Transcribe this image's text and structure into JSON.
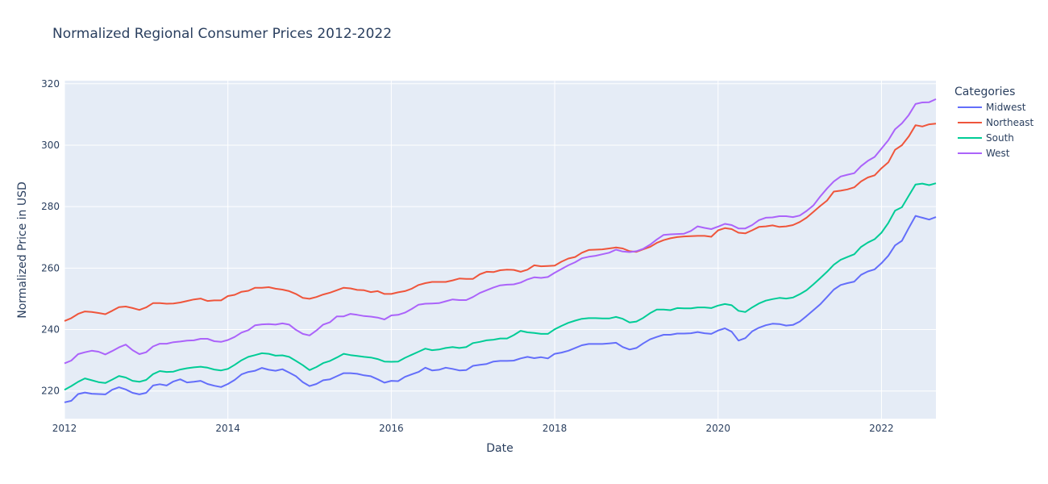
{
  "chart_data": {
    "type": "line",
    "title": "Normalized Regional Consumer Prices 2012-2022",
    "xlabel": "Date",
    "ylabel": "Normalized Price in USD",
    "xlim": [
      "2012-01",
      "2022-09"
    ],
    "ylim": [
      211,
      321
    ],
    "x_ticks": [
      "2012",
      "2014",
      "2016",
      "2018",
      "2020",
      "2022"
    ],
    "y_ticks": [
      220,
      240,
      260,
      280,
      300,
      320
    ],
    "grid": true,
    "legend": {
      "title": "Categories",
      "placement": "right"
    },
    "plot_bgcolor": "#e5ecf6",
    "x": [
      "2012-01",
      "2012-02",
      "2012-03",
      "2012-04",
      "2012-05",
      "2012-06",
      "2012-07",
      "2012-08",
      "2012-09",
      "2012-10",
      "2012-11",
      "2012-12",
      "2013-01",
      "2013-02",
      "2013-03",
      "2013-04",
      "2013-05",
      "2013-06",
      "2013-07",
      "2013-08",
      "2013-09",
      "2013-10",
      "2013-11",
      "2013-12",
      "2014-01",
      "2014-02",
      "2014-03",
      "2014-04",
      "2014-05",
      "2014-06",
      "2014-07",
      "2014-08",
      "2014-09",
      "2014-10",
      "2014-11",
      "2014-12",
      "2015-01",
      "2015-02",
      "2015-03",
      "2015-04",
      "2015-05",
      "2015-06",
      "2015-07",
      "2015-08",
      "2015-09",
      "2015-10",
      "2015-11",
      "2015-12",
      "2016-01",
      "2016-02",
      "2016-03",
      "2016-04",
      "2016-05",
      "2016-06",
      "2016-07",
      "2016-08",
      "2016-09",
      "2016-10",
      "2016-11",
      "2016-12",
      "2017-01",
      "2017-02",
      "2017-03",
      "2017-04",
      "2017-05",
      "2017-06",
      "2017-07",
      "2017-08",
      "2017-09",
      "2017-10",
      "2017-11",
      "2017-12",
      "2018-01",
      "2018-02",
      "2018-03",
      "2018-04",
      "2018-05",
      "2018-06",
      "2018-07",
      "2018-08",
      "2018-09",
      "2018-10",
      "2018-11",
      "2018-12",
      "2019-01",
      "2019-02",
      "2019-03",
      "2019-04",
      "2019-05",
      "2019-06",
      "2019-07",
      "2019-08",
      "2019-09",
      "2019-10",
      "2019-11",
      "2019-12",
      "2020-01",
      "2020-02",
      "2020-03",
      "2020-04",
      "2020-05",
      "2020-06",
      "2020-07",
      "2020-08",
      "2020-09",
      "2020-10",
      "2020-11",
      "2020-12",
      "2021-01",
      "2021-02",
      "2021-03",
      "2021-04",
      "2021-05",
      "2021-06",
      "2021-07",
      "2021-08",
      "2021-09",
      "2021-10",
      "2021-11",
      "2021-12",
      "2022-01",
      "2022-02",
      "2022-03",
      "2022-04",
      "2022-05",
      "2022-06",
      "2022-07",
      "2022-08",
      "2022-09"
    ],
    "series": [
      {
        "name": "Midwest",
        "color": "#636efa",
        "values": [
          216.3,
          216.8,
          219.0,
          219.5,
          219.1,
          219.0,
          218.9,
          220.4,
          221.2,
          220.5,
          219.4,
          218.9,
          219.4,
          221.8,
          222.2,
          221.8,
          223.1,
          223.8,
          222.8,
          223.0,
          223.3,
          222.3,
          221.7,
          221.3,
          222.3,
          223.6,
          225.4,
          226.2,
          226.6,
          227.5,
          226.9,
          226.6,
          227.1,
          226.0,
          224.8,
          222.9,
          221.6,
          222.3,
          223.5,
          223.8,
          224.8,
          225.8,
          225.8,
          225.6,
          225.1,
          224.8,
          223.8,
          222.7,
          223.3,
          223.2,
          224.6,
          225.4,
          226.2,
          227.6,
          226.7,
          226.9,
          227.6,
          227.2,
          226.7,
          226.8,
          228.2,
          228.5,
          228.8,
          229.6,
          229.8,
          229.8,
          229.9,
          230.6,
          231.1,
          230.7,
          231.0,
          230.6,
          232.1,
          232.5,
          233.1,
          234.0,
          234.9,
          235.3,
          235.3,
          235.3,
          235.5,
          235.7,
          234.3,
          233.5,
          234.0,
          235.5,
          236.8,
          237.6,
          238.3,
          238.3,
          238.7,
          238.7,
          238.8,
          239.2,
          238.8,
          238.6,
          239.7,
          240.4,
          239.3,
          236.4,
          237.2,
          239.4,
          240.6,
          241.4,
          241.9,
          241.8,
          241.3,
          241.5,
          242.6,
          244.4,
          246.3,
          248.2,
          250.6,
          253.0,
          254.5,
          255.1,
          255.6,
          257.8,
          258.9,
          259.6,
          261.6,
          264.0,
          267.4,
          268.9,
          273.0,
          277.0,
          276.4,
          275.8,
          276.6
        ]
      },
      {
        "name": "Northeast",
        "color": "#ef553b",
        "values": [
          242.8,
          243.7,
          245.1,
          245.9,
          245.7,
          245.4,
          245.0,
          246.1,
          247.3,
          247.5,
          247.0,
          246.4,
          247.2,
          248.6,
          248.6,
          248.4,
          248.5,
          248.8,
          249.3,
          249.8,
          250.1,
          249.3,
          249.5,
          249.5,
          250.9,
          251.3,
          252.3,
          252.6,
          253.6,
          253.6,
          253.8,
          253.3,
          253.0,
          252.5,
          251.6,
          250.3,
          250.0,
          250.6,
          251.4,
          252.0,
          252.8,
          253.6,
          253.4,
          252.9,
          252.8,
          252.2,
          252.5,
          251.6,
          251.6,
          252.1,
          252.5,
          253.3,
          254.5,
          255.1,
          255.5,
          255.5,
          255.5,
          256.0,
          256.6,
          256.5,
          256.5,
          258.0,
          258.8,
          258.7,
          259.3,
          259.5,
          259.4,
          258.8,
          259.5,
          260.9,
          260.6,
          260.7,
          260.8,
          262.1,
          263.1,
          263.6,
          265.0,
          265.9,
          266.0,
          266.1,
          266.4,
          266.7,
          266.4,
          265.5,
          265.3,
          266.1,
          266.9,
          268.2,
          269.1,
          269.7,
          270.1,
          270.3,
          270.4,
          270.5,
          270.5,
          270.2,
          272.3,
          273.0,
          272.7,
          271.5,
          271.3,
          272.3,
          273.4,
          273.6,
          273.9,
          273.4,
          273.6,
          274.0,
          275.0,
          276.4,
          278.3,
          280.2,
          282.0,
          284.9,
          285.2,
          285.6,
          286.3,
          288.2,
          289.5,
          290.2,
          292.5,
          294.4,
          298.5,
          300.0,
          302.8,
          306.5,
          306.1,
          306.8,
          307.0
        ]
      },
      {
        "name": "South",
        "color": "#00cc96",
        "values": [
          220.4,
          221.6,
          223.0,
          224.1,
          223.5,
          222.9,
          222.6,
          223.7,
          224.9,
          224.4,
          223.3,
          223.0,
          223.6,
          225.5,
          226.5,
          226.2,
          226.3,
          227.0,
          227.4,
          227.7,
          227.9,
          227.6,
          227.0,
          226.7,
          227.2,
          228.5,
          230.0,
          231.1,
          231.7,
          232.3,
          232.1,
          231.5,
          231.6,
          231.1,
          229.8,
          228.4,
          226.8,
          227.8,
          229.1,
          229.8,
          230.9,
          232.1,
          231.7,
          231.4,
          231.1,
          230.9,
          230.4,
          229.6,
          229.5,
          229.6,
          230.8,
          231.8,
          232.8,
          233.8,
          233.3,
          233.5,
          234.0,
          234.3,
          234.0,
          234.3,
          235.6,
          236.0,
          236.5,
          236.7,
          237.1,
          237.1,
          238.2,
          239.6,
          239.1,
          238.9,
          238.6,
          238.6,
          240.1,
          241.2,
          242.2,
          242.9,
          243.5,
          243.7,
          243.7,
          243.6,
          243.6,
          244.1,
          243.5,
          242.3,
          242.6,
          243.8,
          245.3,
          246.5,
          246.5,
          246.3,
          247.0,
          246.9,
          246.9,
          247.2,
          247.2,
          247.0,
          247.8,
          248.3,
          247.9,
          246.1,
          245.7,
          247.2,
          248.5,
          249.4,
          249.9,
          250.3,
          250.1,
          250.4,
          251.5,
          252.8,
          254.7,
          256.7,
          258.8,
          261.1,
          262.7,
          263.6,
          264.5,
          266.9,
          268.3,
          269.4,
          271.5,
          274.7,
          278.7,
          279.8,
          283.5,
          287.2,
          287.5,
          287.0,
          287.6
        ]
      },
      {
        "name": "West",
        "color": "#ab63fa",
        "values": [
          229.0,
          229.9,
          232.0,
          232.6,
          233.1,
          232.8,
          231.9,
          233.0,
          234.2,
          235.1,
          233.3,
          232.0,
          232.6,
          234.5,
          235.4,
          235.4,
          235.9,
          236.1,
          236.4,
          236.5,
          237.0,
          237.0,
          236.2,
          236.0,
          236.6,
          237.6,
          239.0,
          239.8,
          241.4,
          241.7,
          241.8,
          241.6,
          242.0,
          241.6,
          239.9,
          238.6,
          238.1,
          239.7,
          241.6,
          242.4,
          244.3,
          244.3,
          245.1,
          244.8,
          244.4,
          244.2,
          243.9,
          243.3,
          244.6,
          244.8,
          245.5,
          246.7,
          248.1,
          248.4,
          248.5,
          248.6,
          249.2,
          249.8,
          249.6,
          249.6,
          250.6,
          251.9,
          252.8,
          253.7,
          254.4,
          254.6,
          254.7,
          255.3,
          256.3,
          257.0,
          256.8,
          257.1,
          258.5,
          259.7,
          260.9,
          261.9,
          263.2,
          263.7,
          264.0,
          264.5,
          265.0,
          266.0,
          265.4,
          265.2,
          265.5,
          266.3,
          267.6,
          269.3,
          270.8,
          271.0,
          271.1,
          271.2,
          272.1,
          273.6,
          273.1,
          272.7,
          273.5,
          274.4,
          274.0,
          272.9,
          272.9,
          274.0,
          275.6,
          276.4,
          276.5,
          276.9,
          276.9,
          276.6,
          277.1,
          278.6,
          280.4,
          283.3,
          285.9,
          288.2,
          289.8,
          290.4,
          290.9,
          293.2,
          294.9,
          296.2,
          298.9,
          301.6,
          305.2,
          307.1,
          309.8,
          313.4,
          313.9,
          314.0,
          315.0
        ]
      }
    ]
  }
}
